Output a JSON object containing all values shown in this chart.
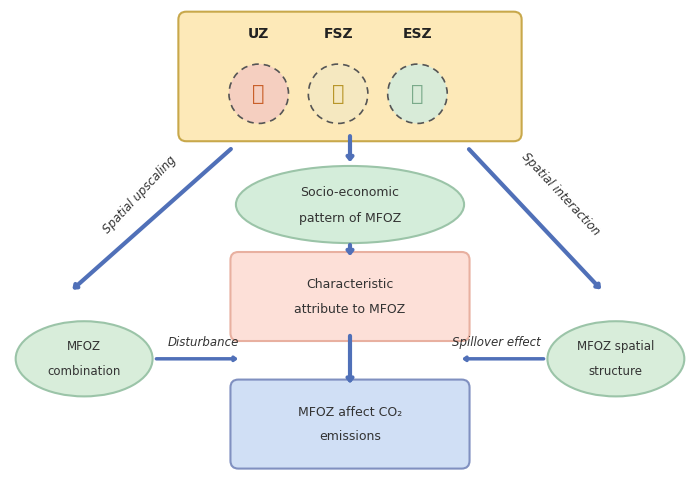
{
  "bg_color": "#ffffff",
  "top_box_color": "#fde9b8",
  "top_box_edge": "#c8a84b",
  "zones": [
    "UZ",
    "FSZ",
    "ESZ"
  ],
  "zone_icon_colors": [
    "#c9602a",
    "#b8962a",
    "#7aaa8a"
  ],
  "zone_circle_colors": [
    "#f5cfc0",
    "#f5e8c0",
    "#d8ebd8"
  ],
  "socio_ellipse_color": "#d4edda",
  "socio_ellipse_edge": "#9bc4a8",
  "socio_text_line1": "Socio-economic",
  "socio_text_line2": "pattern of MFOZ",
  "char_box_color": "#fde0d8",
  "char_box_edge": "#e8b0a0",
  "char_text_line1": "Characteristic",
  "char_text_line2": "attribute to MFOZ",
  "co2_box_color": "#d0dff5",
  "co2_box_edge": "#8090c0",
  "co2_text_line1": "MFOZ affect CO",
  "co2_text_line2": "emissions",
  "left_ellipse_color": "#d8edda",
  "left_ellipse_edge": "#9bc4a8",
  "left_text_line1": "MFOZ",
  "left_text_line2": "combination",
  "right_ellipse_color": "#d8edda",
  "right_ellipse_edge": "#9bc4a8",
  "right_text_line1": "MFOZ spatial",
  "right_text_line2": "structure",
  "arrow_color": "#5070b8",
  "arrow_lw": 3,
  "spatial_upscaling_text": "Spatial upscaling",
  "spatial_interaction_text": "Spatial interaction",
  "disturbance_text": "Disturbance",
  "spillover_text": "Spillover effect",
  "label_fontsize": 9
}
